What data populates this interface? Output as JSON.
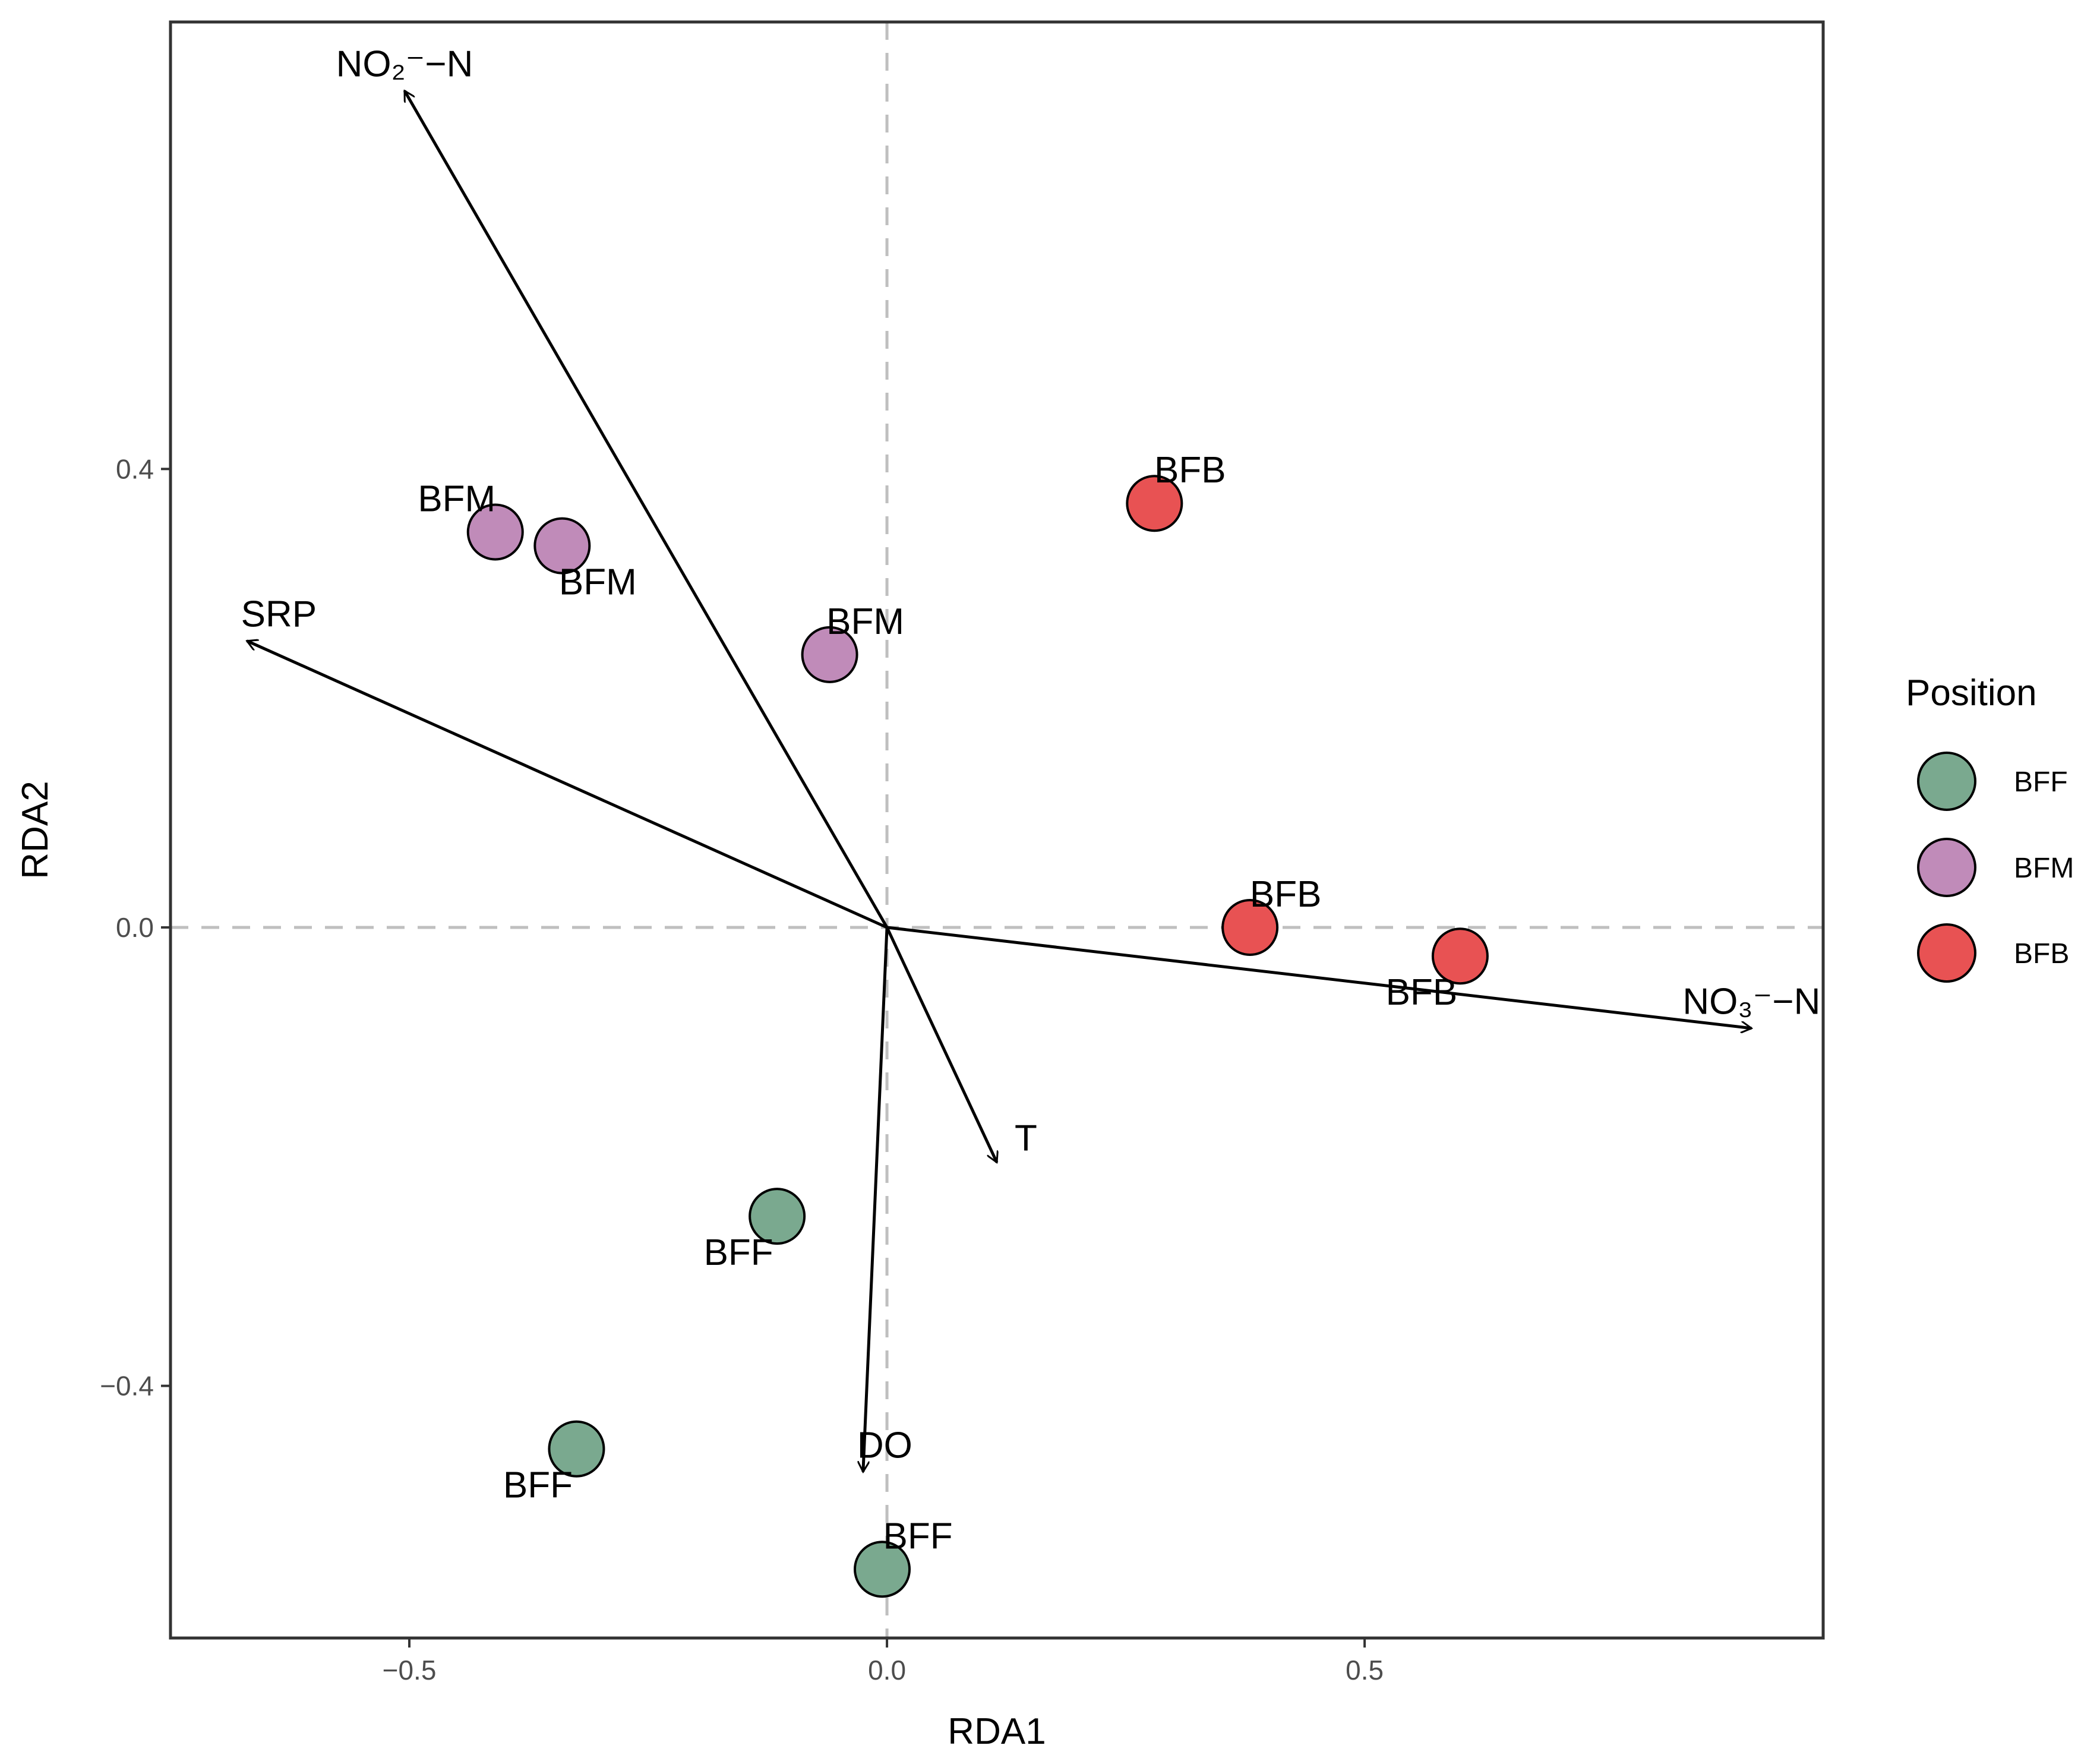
{
  "chart_data": {
    "type": "scatter",
    "subtype": "RDA biplot",
    "xlabel": "RDA1",
    "ylabel": "RDA2",
    "xlim": [
      -0.75,
      0.98
    ],
    "ylim": [
      -0.62,
      0.79
    ],
    "xticks": [
      -0.5,
      0.0,
      0.5
    ],
    "xtick_labels": [
      "−0.5",
      "0.0",
      "0.5"
    ],
    "yticks": [
      -0.4,
      0.0,
      0.4
    ],
    "ytick_labels": [
      "−0.4",
      "0.0",
      "0.4"
    ],
    "reference_lines": {
      "x": 0,
      "y": 0,
      "style": "dashed",
      "color": "#bfbfbf"
    },
    "legend": {
      "title": "Position",
      "position": "right",
      "entries": [
        {
          "label": "BFF",
          "color": "#7aa98f"
        },
        {
          "label": "BFM",
          "color": "#c08bb9"
        },
        {
          "label": "BFB",
          "color": "#e85253"
        }
      ]
    },
    "points": [
      {
        "group": "BFM",
        "label": "BFM",
        "x": -0.41,
        "y": 0.345,
        "label_pos": "above-left"
      },
      {
        "group": "BFM",
        "label": "BFM",
        "x": -0.34,
        "y": 0.333,
        "label_pos": "below-right"
      },
      {
        "group": "BFM",
        "label": "BFM",
        "x": -0.06,
        "y": 0.238,
        "label_pos": "above-right"
      },
      {
        "group": "BFB",
        "label": "BFB",
        "x": 0.28,
        "y": 0.37,
        "label_pos": "above-right"
      },
      {
        "group": "BFB",
        "label": "BFB",
        "x": 0.38,
        "y": 0.0,
        "label_pos": "above-right"
      },
      {
        "group": "BFB",
        "label": "BFB",
        "x": 0.6,
        "y": -0.025,
        "label_pos": "below-left"
      },
      {
        "group": "BFF",
        "label": "BFF",
        "x": -0.115,
        "y": -0.252,
        "label_pos": "below-left"
      },
      {
        "group": "BFF",
        "label": "BFF",
        "x": -0.325,
        "y": -0.455,
        "label_pos": "below-left"
      },
      {
        "group": "BFF",
        "label": "BFF",
        "x": -0.005,
        "y": -0.56,
        "label_pos": "above-right"
      }
    ],
    "vectors": [
      {
        "label": "NO₂⁻−N",
        "x": -0.505,
        "y": 0.73,
        "label_pos": "above"
      },
      {
        "label": "SRP",
        "x": -0.67,
        "y": 0.25,
        "label_pos": "above-right"
      },
      {
        "label": "NO₃⁻−N",
        "x": 0.905,
        "y": -0.088,
        "label_pos": "above"
      },
      {
        "label": "T",
        "x": 0.115,
        "y": -0.205,
        "label_pos": "right"
      },
      {
        "label": "DO",
        "x": -0.025,
        "y": -0.475,
        "label_pos": "above-right"
      }
    ]
  }
}
